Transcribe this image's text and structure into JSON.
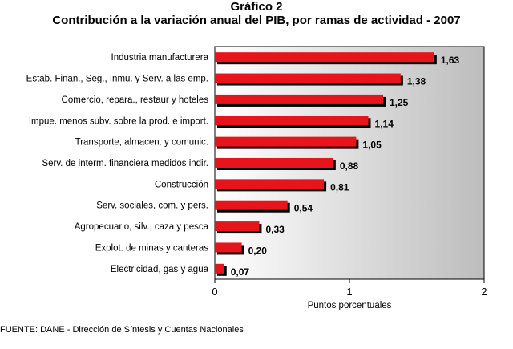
{
  "header": {
    "figure_label": "Gráfico 2",
    "title": "Contribución a la variación anual del PIB, por  ramas de actividad - 2007"
  },
  "source": "FUENTE: DANE - Dirección de Síntesis y Cuentas Nacionales",
  "colors": {
    "bar": "#e8141b",
    "bar_shadow": "#000000",
    "bar_highlight": "#c0001a",
    "plot_gradient_start": "#ffffff",
    "plot_gradient_end": "#bdbdbd"
  },
  "chart_data": {
    "type": "bar",
    "orientation": "horizontal",
    "title": "Contribución a la variación anual del PIB, por  ramas de actividad - 2007",
    "xlabel": "Puntos porcentuales",
    "ylabel": "",
    "xlim": [
      0,
      2
    ],
    "xticks": [
      "0",
      "1",
      "2"
    ],
    "grid": false,
    "categories": [
      "Industria manufacturera",
      "Estab. Finan., Seg., Inmu. y Serv. a las emp.",
      "Comercio, repara., restaur y hoteles",
      "Impue. menos subv. sobre la prod. e import.",
      "Transporte, almacen. y comunic.",
      "Serv. de interm. financiera medidos indir.",
      "Construcción",
      "Serv. sociales, com. y pers.",
      "Agropecuario, silv., caza y pesca",
      "Explot. de minas y canteras",
      "Electricidad, gas y agua"
    ],
    "values": [
      1.63,
      1.38,
      1.25,
      1.14,
      1.05,
      0.88,
      0.81,
      0.54,
      0.33,
      0.2,
      0.07
    ],
    "value_labels": [
      "1,63",
      "1,38",
      "1,25",
      "1,14",
      "1,05",
      "0,88",
      "0,81",
      "0,54",
      "0,33",
      "0,20",
      "0,07"
    ]
  }
}
